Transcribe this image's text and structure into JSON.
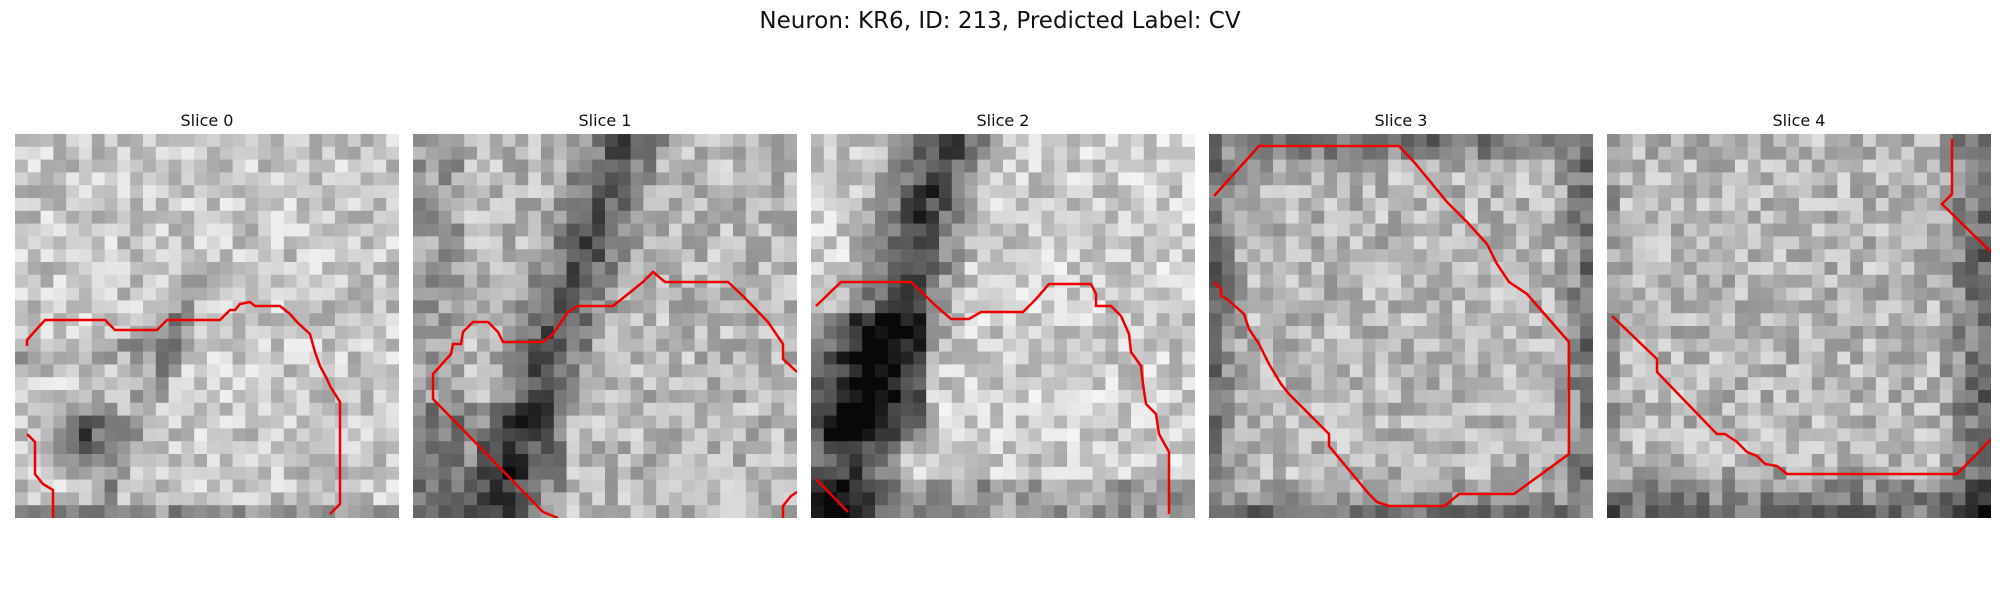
{
  "figure": {
    "title": "Neuron: KR6, ID: 213, Predicted Label: CV"
  },
  "panels": [
    {
      "title": "Slice 0",
      "seed": 11,
      "dark_features": "diagonal membrane and dark blob lower-left"
    },
    {
      "title": "Slice 1",
      "seed": 23,
      "dark_features": "dark vertical band center-left"
    },
    {
      "title": "Slice 2",
      "seed": 37,
      "dark_features": "dark diagonal band upper-left"
    },
    {
      "title": "Slice 3",
      "seed": 51,
      "dark_features": "dark border ring"
    },
    {
      "title": "Slice 4",
      "seed": 67,
      "dark_features": "dark edges right and bottom"
    }
  ],
  "contour_color": "#ee0000",
  "grayscale": true
}
